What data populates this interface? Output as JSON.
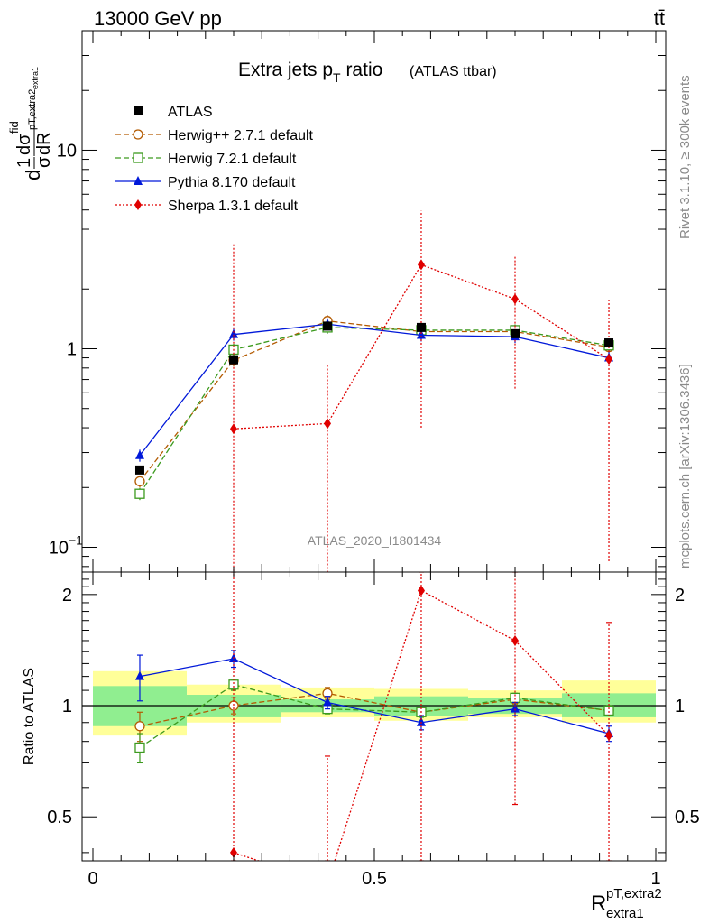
{
  "header": {
    "left": "13000 GeV pp",
    "right": "tt̄"
  },
  "side_labels": {
    "rivet": "Rivet 3.1.10, ≥ 300k events",
    "source": "mcplots.cern.ch [arXiv:1306.3436]"
  },
  "chart_data": {
    "type": "line",
    "title": "Extra jets p",
    "title_subscript": "T",
    "title_suffix": " ratio",
    "subtitle": "(ATLAS ttbar)",
    "watermark": "ATLAS_2020_I1801434",
    "ylabel_main": "(1/σ) dσ^fid / dR^(pT,extra2)_extra1",
    "ylabel_ratio": "Ratio to ATLAS",
    "xlabel_main": "R",
    "xlabel_sup": "pT,extra2",
    "xlabel_sub": "extra1",
    "xlim": [
      0,
      1
    ],
    "ylim_main": [
      0.075,
      40
    ],
    "yscale_main": "log",
    "ylim_ratio": [
      0.38,
      2.3
    ],
    "yscale_ratio": "log",
    "x_ticks": [
      "0",
      "0.5",
      "1"
    ],
    "y_ticks_main": [
      "10^-1",
      "1",
      "10"
    ],
    "y_ticks_ratio": [
      "0.5",
      "1",
      "2"
    ],
    "x": [
      0.0833,
      0.25,
      0.4167,
      0.5833,
      0.75,
      0.9167
    ],
    "bins": [
      [
        0,
        0.1667
      ],
      [
        0.1667,
        0.3333
      ],
      [
        0.3333,
        0.5
      ],
      [
        0.5,
        0.6667
      ],
      [
        0.6667,
        0.8333
      ],
      [
        0.8333,
        1.0
      ]
    ],
    "legend_position": "top-left",
    "reference": {
      "name": "ATLAS",
      "values": [
        0.245,
        0.88,
        1.3,
        1.28,
        1.19,
        1.07
      ],
      "band_inner": [
        [
          0.88,
          1.13
        ],
        [
          0.93,
          1.07
        ],
        [
          0.96,
          1.04
        ],
        [
          0.94,
          1.06
        ],
        [
          0.95,
          1.05
        ],
        [
          0.93,
          1.08
        ]
      ],
      "band_outer": [
        [
          0.83,
          1.24
        ],
        [
          0.9,
          1.14
        ],
        [
          0.93,
          1.12
        ],
        [
          0.91,
          1.11
        ],
        [
          0.93,
          1.1
        ],
        [
          0.9,
          1.17
        ]
      ]
    },
    "series": [
      {
        "name": "Herwig++ 2.7.1 default",
        "color": "#b35a00",
        "dash": "6,3",
        "marker": "open-circle",
        "values": [
          0.215,
          0.875,
          1.38,
          1.22,
          1.22,
          1.02
        ],
        "ratio": [
          0.88,
          1.0,
          1.08,
          0.96,
          1.04,
          0.97
        ],
        "ratio_err": [
          0.08,
          0.05,
          0.04,
          0.03,
          0.03,
          0.03
        ]
      },
      {
        "name": "Herwig 7.2.1 default",
        "color": "#3c9a1e",
        "dash": "6,3",
        "marker": "open-square",
        "values": [
          0.186,
          0.99,
          1.28,
          1.24,
          1.24,
          1.04
        ],
        "ratio": [
          0.77,
          1.14,
          0.98,
          0.96,
          1.05,
          0.97
        ],
        "ratio_err": [
          0.07,
          0.04,
          0.03,
          0.03,
          0.03,
          0.03
        ]
      },
      {
        "name": "Pythia 8.170 default",
        "color": "#0018d9",
        "dash": "",
        "marker": "filled-triangle",
        "values": [
          0.29,
          1.18,
          1.33,
          1.17,
          1.15,
          0.9
        ],
        "ratio": [
          1.2,
          1.34,
          1.02,
          0.9,
          0.98,
          0.84
        ],
        "ratio_err": [
          0.17,
          0.07,
          0.04,
          0.04,
          0.04,
          0.04
        ]
      },
      {
        "name": "Sherpa 1.3.1 default",
        "color": "#e00000",
        "dash": "2,2",
        "marker": "filled-diamond",
        "values": [
          null,
          0.395,
          0.42,
          2.65,
          1.78,
          0.885
        ],
        "err_low": [
          null,
          0.39,
          0.41,
          2.25,
          1.15,
          0.8
        ],
        "err_high": [
          null,
          3.0,
          0.42,
          2.3,
          1.15,
          0.9
        ],
        "ratio": [
          null,
          0.4,
          0.33,
          2.05,
          1.5,
          0.83
        ],
        "ratio_err_low": [
          null,
          0.3,
          0.3,
          1.8,
          0.96,
          0.8
        ],
        "ratio_err_high": [
          null,
          3.0,
          0.4,
          1.8,
          1.2,
          0.85
        ]
      }
    ]
  }
}
